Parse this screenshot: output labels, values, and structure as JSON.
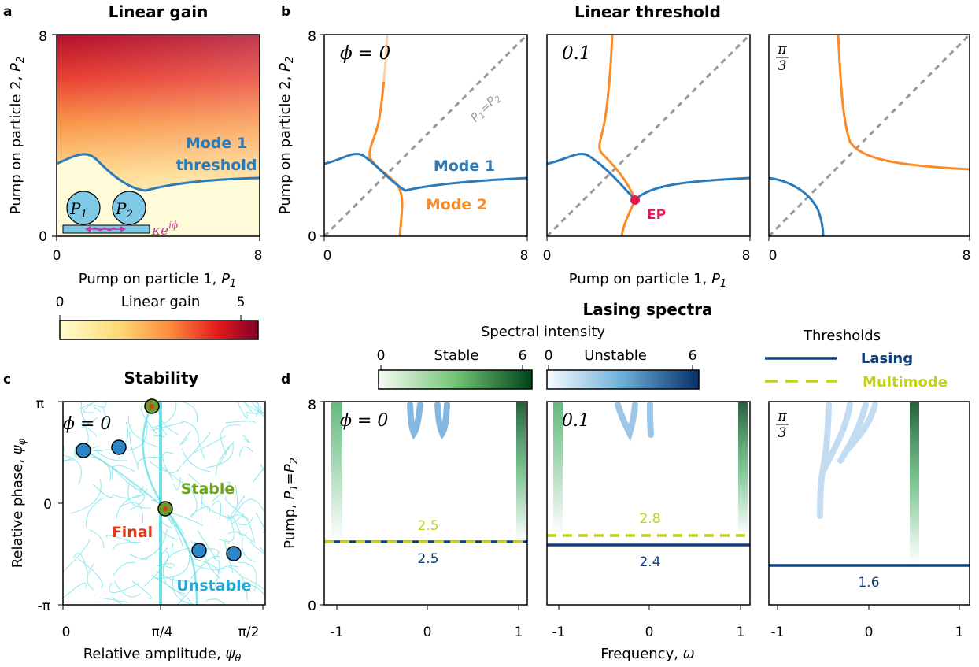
{
  "panels": {
    "a": "a",
    "b": "b",
    "c": "c",
    "d": "d"
  },
  "titles": {
    "a": "Linear gain",
    "b": "Linear threshold",
    "c": "Stability",
    "d": "Lasing spectra"
  },
  "panel_a": {
    "xlabel": "Pump on particle 1, ",
    "xlabel_sym": "P",
    "xlabel_sub": "1",
    "ylabel": "Pump on particle 2, ",
    "ylabel_sym": "P",
    "ylabel_sub": "2",
    "xticks": [
      "0",
      "8"
    ],
    "yticks": [
      "0",
      "8"
    ],
    "mode_label_1": "Mode 1",
    "mode_label_2": "threshold",
    "particle_1": "P",
    "particle_1_sub": "1",
    "particle_2": "P",
    "particle_2_sub": "2",
    "coupling": "κe",
    "coupling_sup": "iϕ",
    "colorbar_label": "Linear gain",
    "colorbar_ticks": [
      "0",
      "5"
    ]
  },
  "panel_b": {
    "xlabel": "Pump on particle 1, ",
    "xlabel_sym": "P",
    "xlabel_sub": "1",
    "ylabel": "Pump on particle 2, ",
    "ylabel_sym": "P",
    "ylabel_sub": "2",
    "xticks": [
      "0",
      "8"
    ],
    "yticks": [
      "0",
      "8"
    ],
    "phi_labels": [
      "ϕ = 0",
      "0.1",
      "π",
      "3"
    ],
    "diag_label": "P",
    "diag_sub1": "1",
    "diag_eq": "=P",
    "diag_sub2": "2",
    "mode1": "Mode 1",
    "mode2": "Mode 2",
    "ep": "EP"
  },
  "panel_c": {
    "xlabel": "Relative amplitude, ",
    "xlabel_sym": "ψ",
    "xlabel_sub": "θ",
    "ylabel": "Relative phase, ",
    "ylabel_sym": "ψ",
    "ylabel_sub": "φ",
    "xticks": [
      "0",
      "π/4",
      "π/2"
    ],
    "yticks": [
      "π",
      "0",
      "-π"
    ],
    "phi": "ϕ = 0",
    "stable": "Stable",
    "final": "Final",
    "unstable": "Unstable"
  },
  "panel_d": {
    "xlabel": "Frequency, ",
    "xlabel_sym": "ω",
    "ylabel": "Pump, ",
    "ylabel_sym": "P",
    "ylabel_sub1": "1",
    "ylabel_eq": "=P",
    "ylabel_sub2": "2",
    "xticks": [
      "-1",
      "0",
      "1"
    ],
    "yticks": [
      "0",
      "8"
    ],
    "colorbar_title": "Spectral intensity",
    "stable_label": "Stable",
    "unstable_label": "Unstable",
    "colorbar_ticks": [
      "0",
      "6"
    ],
    "thresholds_title": "Thresholds",
    "lasing": "Lasing",
    "multimode": "Multimode",
    "phi_labels": [
      "ϕ = 0",
      "0.1",
      "π",
      "3"
    ],
    "threshold_values": {
      "phi0_multimode": "2.5",
      "phi0_lasing": "2.5",
      "phi01_multimode": "2.8",
      "phi01_lasing": "2.4",
      "phipi3_lasing": "1.6"
    }
  },
  "colors": {
    "mode1": "#2b7bba",
    "mode2": "#fb8b24",
    "ep": "#e8174f",
    "lasing": "#0d3f7c",
    "multimode": "#c4d11a",
    "stable_text": "#72a317",
    "final_text": "#e03a1c",
    "unstable_text": "#21a8d8",
    "traj": "#33d6e0",
    "diag": "#999999"
  }
}
